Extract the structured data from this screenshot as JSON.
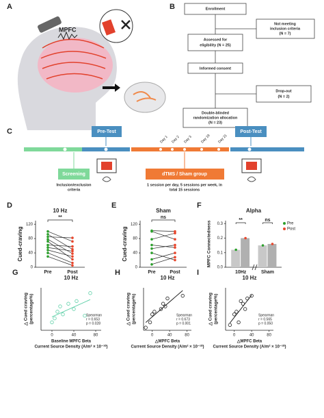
{
  "figure_labels": [
    "A",
    "B",
    "C"
  ],
  "panel_a": {
    "region": "MPFC"
  },
  "flowchart": {
    "enrollment": "Enrollment",
    "not_meeting": [
      "Not meeting",
      "inclusion criteria",
      "(N = 7)"
    ],
    "assessed": [
      "Assessed for",
      "eligibility (N = 25)"
    ],
    "consent": "Informed consent",
    "dropout": [
      "Drop-out",
      "(N = 2)"
    ],
    "allocation": [
      "Double-blinded",
      "randomization allocation",
      "(N = 23)"
    ]
  },
  "timeline": {
    "pre_test": "Pre-Test",
    "post_test": "Post-Test",
    "days": [
      "Day 1",
      "Day 2",
      "Day 3",
      "Day 19",
      "Day 21"
    ],
    "screening": "Screening",
    "screening_note": [
      "Inclusion/exclusion",
      "criteria"
    ],
    "treatment": "dTMS / Sham group",
    "treatment_note": [
      "1 session per day, 5 sessions per week, in",
      "total 15 sessions"
    ]
  },
  "plots": [
    {
      "label": "D",
      "type": "paired",
      "title": "10 Hz",
      "ylabel": "Cued-craving",
      "categories": [
        "Pre",
        "Post"
      ],
      "significance": "**",
      "ylim": [
        0,
        130
      ],
      "yticks": [
        0,
        40,
        80,
        120
      ],
      "pre_color": "#2ca02c",
      "post_color": "#e8462c",
      "pre": [
        100,
        92,
        85,
        78,
        72,
        62,
        55,
        48,
        40,
        30
      ],
      "post": [
        72,
        50,
        82,
        38,
        22,
        58,
        45,
        30,
        12,
        5
      ]
    },
    {
      "label": "E",
      "type": "paired",
      "title": "Sham",
      "ylabel": "Cued-craving",
      "categories": [
        "Pre",
        "Post"
      ],
      "significance": "ns",
      "ylim": [
        0,
        130
      ],
      "yticks": [
        0,
        40,
        80,
        120
      ],
      "pre_color": "#2ca02c",
      "post_color": "#e8462c",
      "pre": [
        102,
        100,
        78,
        62,
        52,
        40,
        22,
        8
      ],
      "post": [
        100,
        78,
        95,
        55,
        62,
        20,
        40,
        28
      ]
    },
    {
      "label": "F",
      "type": "bar",
      "title": "Alpha",
      "ylabel": "MPFC Connectedness",
      "categories": [
        "10Hz",
        "Sham"
      ],
      "significance": [
        "**",
        "ns"
      ],
      "ylim": [
        0,
        0.32
      ],
      "yticks": [
        {
          "value": 0,
          "label": "0.0"
        },
        0.1,
        0.2,
        0.3
      ],
      "series": [
        {
          "name": "Pre",
          "color": "#2ca02c",
          "values": [
            0.12,
            0.15
          ]
        },
        {
          "name": "Post",
          "color": "#e8462c",
          "values": [
            0.2,
            0.16
          ]
        }
      ]
    },
    {
      "label": "G",
      "type": "scatter",
      "title": "10 Hz",
      "ylabel": [
        "△ Cued craving",
        "(percentage%)"
      ],
      "xlabel": [
        "Baseline MPFC Beta",
        "Current Source Density (A/m² × 10⁻¹⁰)"
      ],
      "stats": [
        "Spearman",
        "r = 0.653",
        "p = 0.028"
      ],
      "color": "#5fd0a8",
      "xlim": [
        -20,
        90
      ],
      "ylim": [
        -50,
        110
      ],
      "xticks": [
        0,
        40,
        80
      ],
      "x": [
        0,
        5,
        10,
        15,
        20,
        30,
        40,
        45,
        60,
        70
      ],
      "y": [
        -20,
        -5,
        20,
        40,
        10,
        50,
        30,
        60,
        5,
        90
      ]
    },
    {
      "label": "H",
      "type": "scatter",
      "title": "10 Hz",
      "ylabel": [
        "△ Cued craving",
        "(percentage%)"
      ],
      "xlabel": [
        "△MPFC Beta",
        "Current Source Density (A/m² × 10⁻¹⁰)"
      ],
      "stats": [
        "Spearman",
        "r = 0.673",
        "p = 0.001"
      ],
      "color": "#222222",
      "xlim": [
        -20,
        90
      ],
      "ylim": [
        -50,
        110
      ],
      "xticks": [
        0,
        40,
        80
      ],
      "x": [
        -15,
        -5,
        0,
        5,
        20,
        25,
        30,
        35,
        70
      ],
      "y": [
        -40,
        -20,
        10,
        20,
        30,
        50,
        40,
        70,
        80
      ]
    },
    {
      "label": "I",
      "type": "scatter",
      "title": "10 Hz",
      "ylabel": [
        "△ Cued craving",
        "(percentage%)"
      ],
      "xlabel": [
        "△MPFC Beta",
        "Current Source Density (A/m² × 10⁻¹⁰)"
      ],
      "stats": [
        "Spearman",
        "r = 0.565",
        "p = 0.050"
      ],
      "color": "#222222",
      "xlim": [
        -20,
        90
      ],
      "ylim": [
        -50,
        110
      ],
      "xticks": [
        0,
        40,
        80
      ],
      "x": [
        -10,
        0,
        5,
        10,
        15,
        20,
        25,
        30,
        40
      ],
      "y": [
        -30,
        10,
        20,
        -20,
        60,
        50,
        30,
        70,
        80
      ]
    }
  ]
}
